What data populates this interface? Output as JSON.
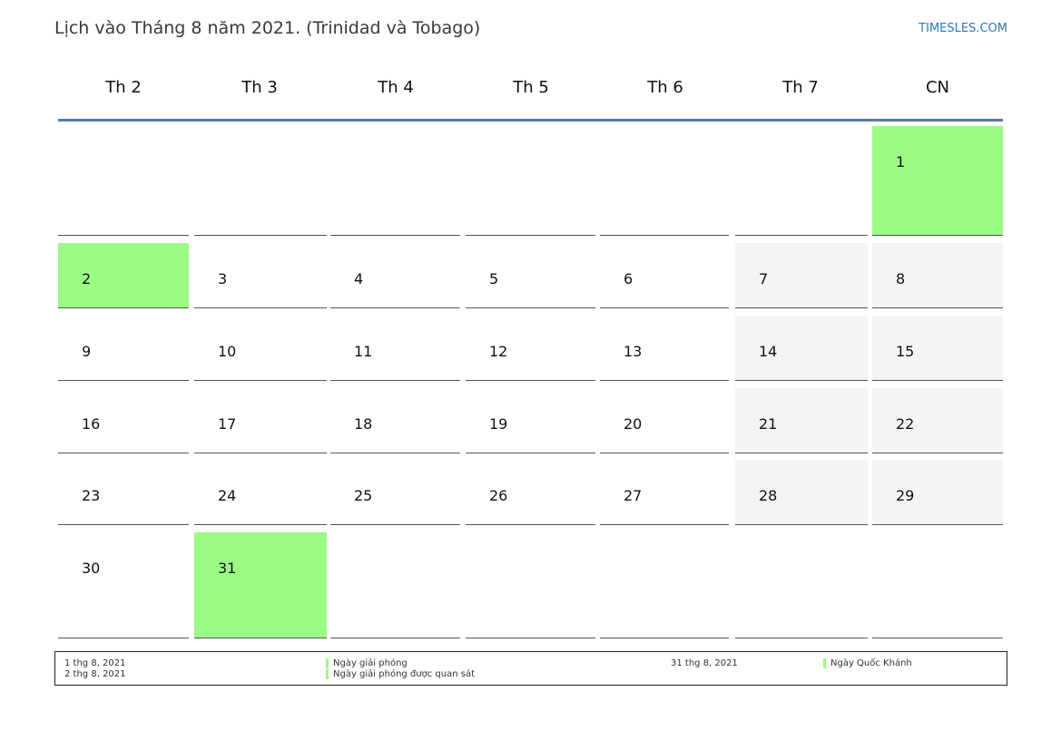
{
  "title": "Lịch vào Tháng 8 năm 2021. (Trinidad và Tobago)",
  "site": "TIMESLES.COM",
  "colors": {
    "holiday": "#9cfb85",
    "weekend": "#f4f4f4",
    "header_line": "#5a7aa6",
    "link": "#2a7ab8"
  },
  "weekdays": [
    "Th 2",
    "Th 3",
    "Th 4",
    "Th 5",
    "Th 6",
    "Th 7",
    "CN"
  ],
  "weeks": [
    [
      null,
      null,
      null,
      null,
      null,
      null,
      {
        "day": "1",
        "holiday": true
      }
    ],
    [
      {
        "day": "2",
        "holiday": true
      },
      {
        "day": "3"
      },
      {
        "day": "4"
      },
      {
        "day": "5"
      },
      {
        "day": "6"
      },
      {
        "day": "7"
      },
      {
        "day": "8"
      }
    ],
    [
      {
        "day": "9"
      },
      {
        "day": "10"
      },
      {
        "day": "11"
      },
      {
        "day": "12"
      },
      {
        "day": "13"
      },
      {
        "day": "14"
      },
      {
        "day": "15"
      }
    ],
    [
      {
        "day": "16"
      },
      {
        "day": "17"
      },
      {
        "day": "18"
      },
      {
        "day": "19"
      },
      {
        "day": "20"
      },
      {
        "day": "21"
      },
      {
        "day": "22"
      }
    ],
    [
      {
        "day": "23"
      },
      {
        "day": "24"
      },
      {
        "day": "25"
      },
      {
        "day": "26"
      },
      {
        "day": "27"
      },
      {
        "day": "28"
      },
      {
        "day": "29"
      }
    ],
    [
      {
        "day": "30"
      },
      {
        "day": "31",
        "holiday": true
      },
      null,
      null,
      null,
      null,
      null
    ]
  ],
  "legend": {
    "left_dates": [
      "1 thg 8, 2021",
      "2 thg 8, 2021"
    ],
    "left_names": [
      "Ngày giải phóng",
      "Ngày giải phóng được quan sát"
    ],
    "right_dates": [
      "31 thg 8, 2021"
    ],
    "right_names": [
      "Ngày Quốc Khánh"
    ]
  }
}
